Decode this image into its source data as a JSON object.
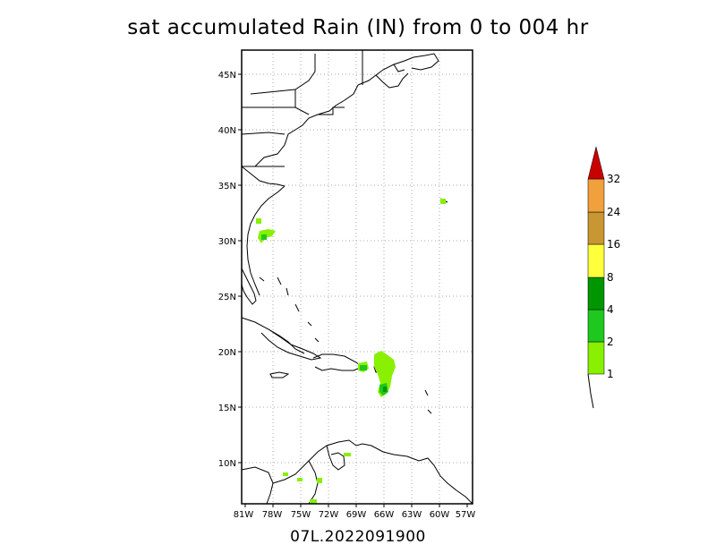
{
  "title": "sat accumulated Rain (IN) from 0 to 004 hr",
  "footer": "07L.2022091900",
  "lat_labels": [
    "45N",
    "40N",
    "35N",
    "30N",
    "25N",
    "20N",
    "15N",
    "10N"
  ],
  "lon_labels": [
    "81W",
    "78W",
    "75W",
    "72W",
    "69W",
    "66W",
    "63W",
    "60W",
    "57W"
  ],
  "colors": {
    "land_outline": "#000000",
    "gridline": "#aaaaaa",
    "rain_1": "#88f000",
    "rain_2": "#1ec81e",
    "rain_4": "#009600",
    "rain_8": "#ffff3c",
    "rain_16": "#c89632",
    "rain_24": "#f0a03c",
    "rain_32": "#c80000"
  },
  "legend": {
    "levels": [
      "1",
      "2",
      "4",
      "8",
      "16",
      "24",
      "32"
    ]
  }
}
